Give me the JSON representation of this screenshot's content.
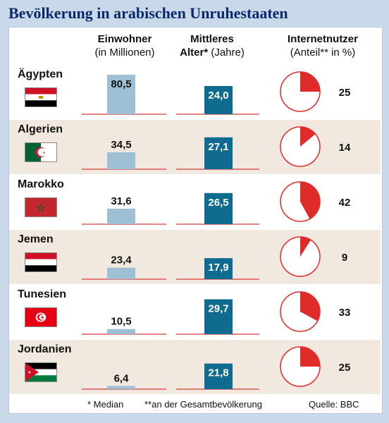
{
  "title": "Bevölkerung in arabischen Unruhestaaten",
  "headers": {
    "pop_line1": "Einwohner",
    "pop_line2": "(in Millionen)",
    "age_line1_bold": "Mittleres",
    "age_line2_bold": "Alter*",
    "age_line2_rest": " (Jahre)",
    "net_line1": "Internetnutzer",
    "net_line2": "(Anteil** in %)"
  },
  "footer": {
    "median": "* Median",
    "share": "**an der Gesamtbevölkerung",
    "source": "Quelle: BBC"
  },
  "colors": {
    "pop_bar": "#9fbfd4",
    "age_bar": "#0f6b8f",
    "pie_fill": "#e02b2b",
    "baseline": "#d83a3a",
    "row_alt": "#f1e9df"
  },
  "chart_data": {
    "type": "table",
    "categories": [
      "Ägypten",
      "Algerien",
      "Marokko",
      "Jemen",
      "Tunesien",
      "Jordanien"
    ],
    "population_millions": [
      80.5,
      34.5,
      31.6,
      23.4,
      10.5,
      6.4
    ],
    "population_labels": [
      "80,5",
      "34,5",
      "31,6",
      "23,4",
      "10,5",
      "6,4"
    ],
    "median_age_years": [
      24.0,
      27.1,
      26.5,
      17.9,
      29.7,
      21.8
    ],
    "median_age_labels": [
      "24,0",
      "27,1",
      "26,5",
      "17,9",
      "29,7",
      "21,8"
    ],
    "internet_users_percent": [
      25,
      14,
      42,
      9,
      33,
      25
    ],
    "internet_labels": [
      "25",
      "14",
      "42",
      "9",
      "33",
      "25"
    ],
    "flags": [
      "flag-egypt",
      "flag-algeria",
      "flag-morocco",
      "flag-yemen",
      "flag-tunisia",
      "flag-jordan"
    ]
  }
}
